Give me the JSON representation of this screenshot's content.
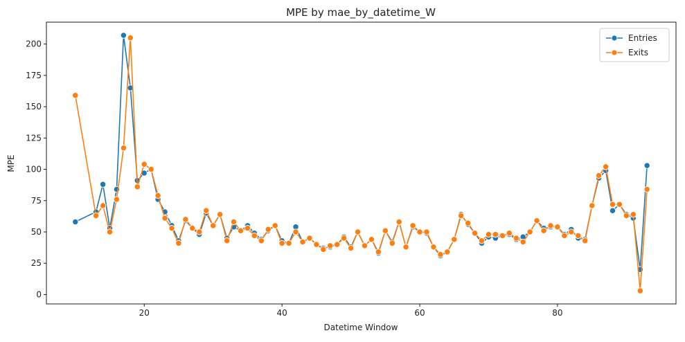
{
  "chart_data": {
    "type": "line",
    "title": "MPE by mae_by_datetime_W",
    "xlabel": "Datetime Window",
    "ylabel": "MPE",
    "xlim": [
      5.8,
      97.2
    ],
    "ylim": [
      -7.5,
      217.5
    ],
    "xticks": [
      20,
      40,
      60,
      80
    ],
    "yticks": [
      0,
      25,
      50,
      75,
      100,
      125,
      150,
      175,
      200
    ],
    "grid": false,
    "legend_position": "top-right",
    "series": [
      {
        "name": "Entries",
        "color": "#1f77b4",
        "x": [
          10,
          13,
          14,
          15,
          16,
          17,
          18,
          19,
          20,
          21,
          22,
          23,
          24,
          25,
          26,
          27,
          28,
          29,
          30,
          31,
          32,
          33,
          34,
          35,
          36,
          37,
          38,
          39,
          40,
          41,
          42,
          43,
          44,
          45,
          46,
          47,
          48,
          49,
          50,
          51,
          52,
          53,
          54,
          55,
          56,
          57,
          58,
          59,
          60,
          61,
          62,
          63,
          64,
          65,
          66,
          67,
          68,
          69,
          70,
          71,
          72,
          73,
          74,
          75,
          76,
          77,
          78,
          79,
          80,
          81,
          82,
          83,
          84,
          85,
          86,
          87,
          88,
          89,
          90,
          91,
          92,
          93
        ],
        "y": [
          58,
          66,
          88,
          53,
          84,
          207,
          165,
          91,
          97,
          100,
          76,
          66,
          55,
          43,
          59,
          53,
          48,
          65,
          55,
          64,
          45,
          54,
          51,
          55,
          49,
          44,
          51,
          55,
          43,
          41,
          54,
          42,
          45,
          40,
          37,
          38,
          40,
          46,
          38,
          50,
          39,
          44,
          33,
          51,
          42,
          58,
          38,
          54,
          50,
          49,
          38,
          31,
          34,
          44,
          64,
          56,
          49,
          41,
          46,
          45,
          47,
          48,
          44,
          46,
          50,
          59,
          53,
          54,
          54,
          48,
          52,
          45,
          44,
          71,
          93,
          99,
          67,
          72,
          64,
          61,
          20,
          103
        ]
      },
      {
        "name": "Exits",
        "color": "#ff7f0e",
        "x": [
          10,
          13,
          14,
          15,
          16,
          17,
          18,
          19,
          20,
          21,
          22,
          23,
          24,
          25,
          26,
          27,
          28,
          29,
          30,
          31,
          32,
          33,
          34,
          35,
          36,
          37,
          38,
          39,
          40,
          41,
          42,
          43,
          44,
          45,
          46,
          47,
          48,
          49,
          50,
          51,
          52,
          53,
          54,
          55,
          56,
          57,
          58,
          59,
          60,
          61,
          62,
          63,
          64,
          65,
          66,
          67,
          68,
          69,
          70,
          71,
          72,
          73,
          74,
          75,
          76,
          77,
          78,
          79,
          80,
          81,
          82,
          83,
          84,
          85,
          86,
          87,
          88,
          89,
          90,
          91,
          92,
          93
        ],
        "y": [
          159,
          63,
          71,
          50,
          76,
          117,
          205,
          86,
          104,
          100,
          79,
          61,
          53,
          41,
          60,
          53,
          50,
          67,
          55,
          64,
          43,
          58,
          51,
          53,
          47,
          43,
          52,
          55,
          41,
          41,
          50,
          42,
          45,
          40,
          36,
          39,
          40,
          45,
          37,
          50,
          39,
          44,
          34,
          51,
          41,
          58,
          38,
          55,
          50,
          50,
          38,
          32,
          34,
          44,
          63,
          57,
          49,
          43,
          48,
          48,
          47,
          49,
          45,
          42,
          50,
          59,
          51,
          55,
          54,
          47,
          50,
          47,
          43,
          71,
          95,
          102,
          72,
          72,
          63,
          64,
          3,
          84
        ]
      }
    ]
  }
}
